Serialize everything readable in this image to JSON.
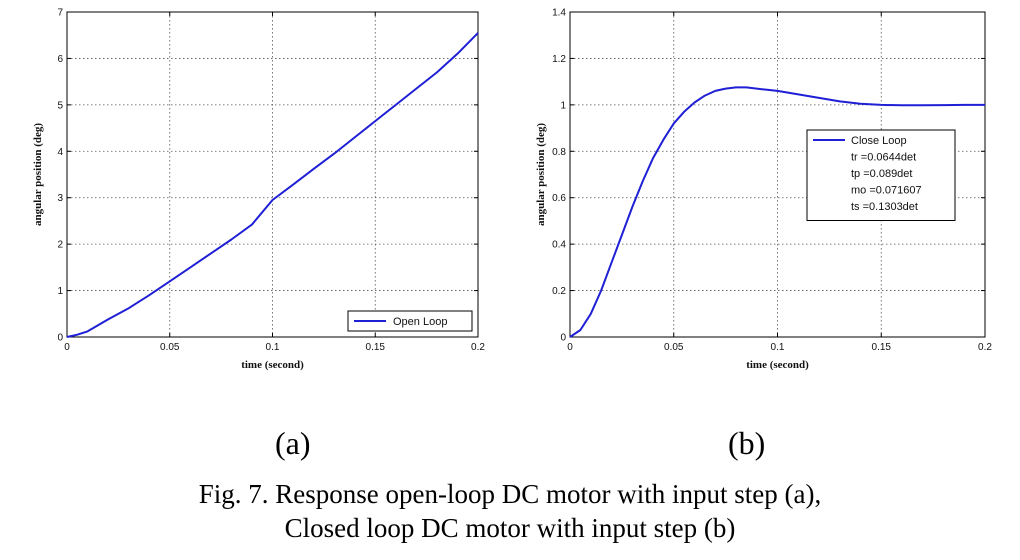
{
  "chart_data": [
    {
      "type": "line",
      "panel": "(a)",
      "xlabel": "time (second)",
      "ylabel": "angular position (deg)",
      "xlim": [
        0,
        0.2
      ],
      "ylim": [
        0,
        7
      ],
      "xticks": [
        "0",
        "0.05",
        "0.1",
        "0.15",
        "0.2"
      ],
      "yticks": [
        "0",
        "1",
        "2",
        "3",
        "4",
        "5",
        "6",
        "7"
      ],
      "grid": true,
      "legend_position": "bottom-right",
      "legend": [
        "Open Loop"
      ],
      "series": [
        {
          "name": "Open Loop",
          "color": "#1f1fd6",
          "x": [
            0,
            0.005,
            0.01,
            0.015,
            0.02,
            0.03,
            0.04,
            0.05,
            0.06,
            0.07,
            0.08,
            0.09,
            0.1,
            0.11,
            0.12,
            0.13,
            0.14,
            0.15,
            0.16,
            0.17,
            0.18,
            0.19,
            0.2
          ],
          "y": [
            0,
            0.05,
            0.12,
            0.25,
            0.38,
            0.62,
            0.9,
            1.2,
            1.5,
            1.8,
            2.1,
            2.42,
            2.95,
            3.28,
            3.62,
            3.95,
            4.3,
            4.65,
            5.0,
            5.35,
            5.7,
            6.1,
            6.55
          ]
        }
      ]
    },
    {
      "type": "line",
      "panel": "(b)",
      "xlabel": "time (second)",
      "ylabel": "angular position (deg)",
      "xlim": [
        0,
        0.2
      ],
      "ylim": [
        0,
        1.4
      ],
      "xticks": [
        "0",
        "0.05",
        "0.1",
        "0.15",
        "0.2"
      ],
      "yticks": [
        "0",
        "0.2",
        "0.4",
        "0.6",
        "0.8",
        "1",
        "1.2",
        "1.4"
      ],
      "grid": true,
      "legend_position": "right",
      "legend": [
        "Close Loop",
        "tr =0.0644det",
        "tp =0.089det",
        "mo =0.071607",
        "ts =0.1303det"
      ],
      "series": [
        {
          "name": "Close Loop",
          "color": "#1f1fd6",
          "x": [
            0,
            0.005,
            0.01,
            0.015,
            0.02,
            0.025,
            0.03,
            0.035,
            0.04,
            0.045,
            0.05,
            0.055,
            0.06,
            0.065,
            0.07,
            0.075,
            0.08,
            0.085,
            0.09,
            0.095,
            0.1,
            0.11,
            0.12,
            0.13,
            0.14,
            0.15,
            0.16,
            0.17,
            0.18,
            0.19,
            0.2
          ],
          "y": [
            0,
            0.03,
            0.1,
            0.2,
            0.32,
            0.44,
            0.56,
            0.67,
            0.77,
            0.85,
            0.92,
            0.97,
            1.01,
            1.04,
            1.06,
            1.07,
            1.075,
            1.075,
            1.07,
            1.065,
            1.06,
            1.045,
            1.03,
            1.015,
            1.005,
            1.0,
            0.998,
            0.998,
            0.999,
            1.0,
            1.0
          ]
        }
      ]
    }
  ],
  "figure": {
    "panel_a_label": "(a)",
    "panel_b_label": "(b)",
    "caption_line1": "Fig. 7. Response open-loop DC motor with input step (a),",
    "caption_line2": "Closed loop DC motor with input step (b)"
  }
}
